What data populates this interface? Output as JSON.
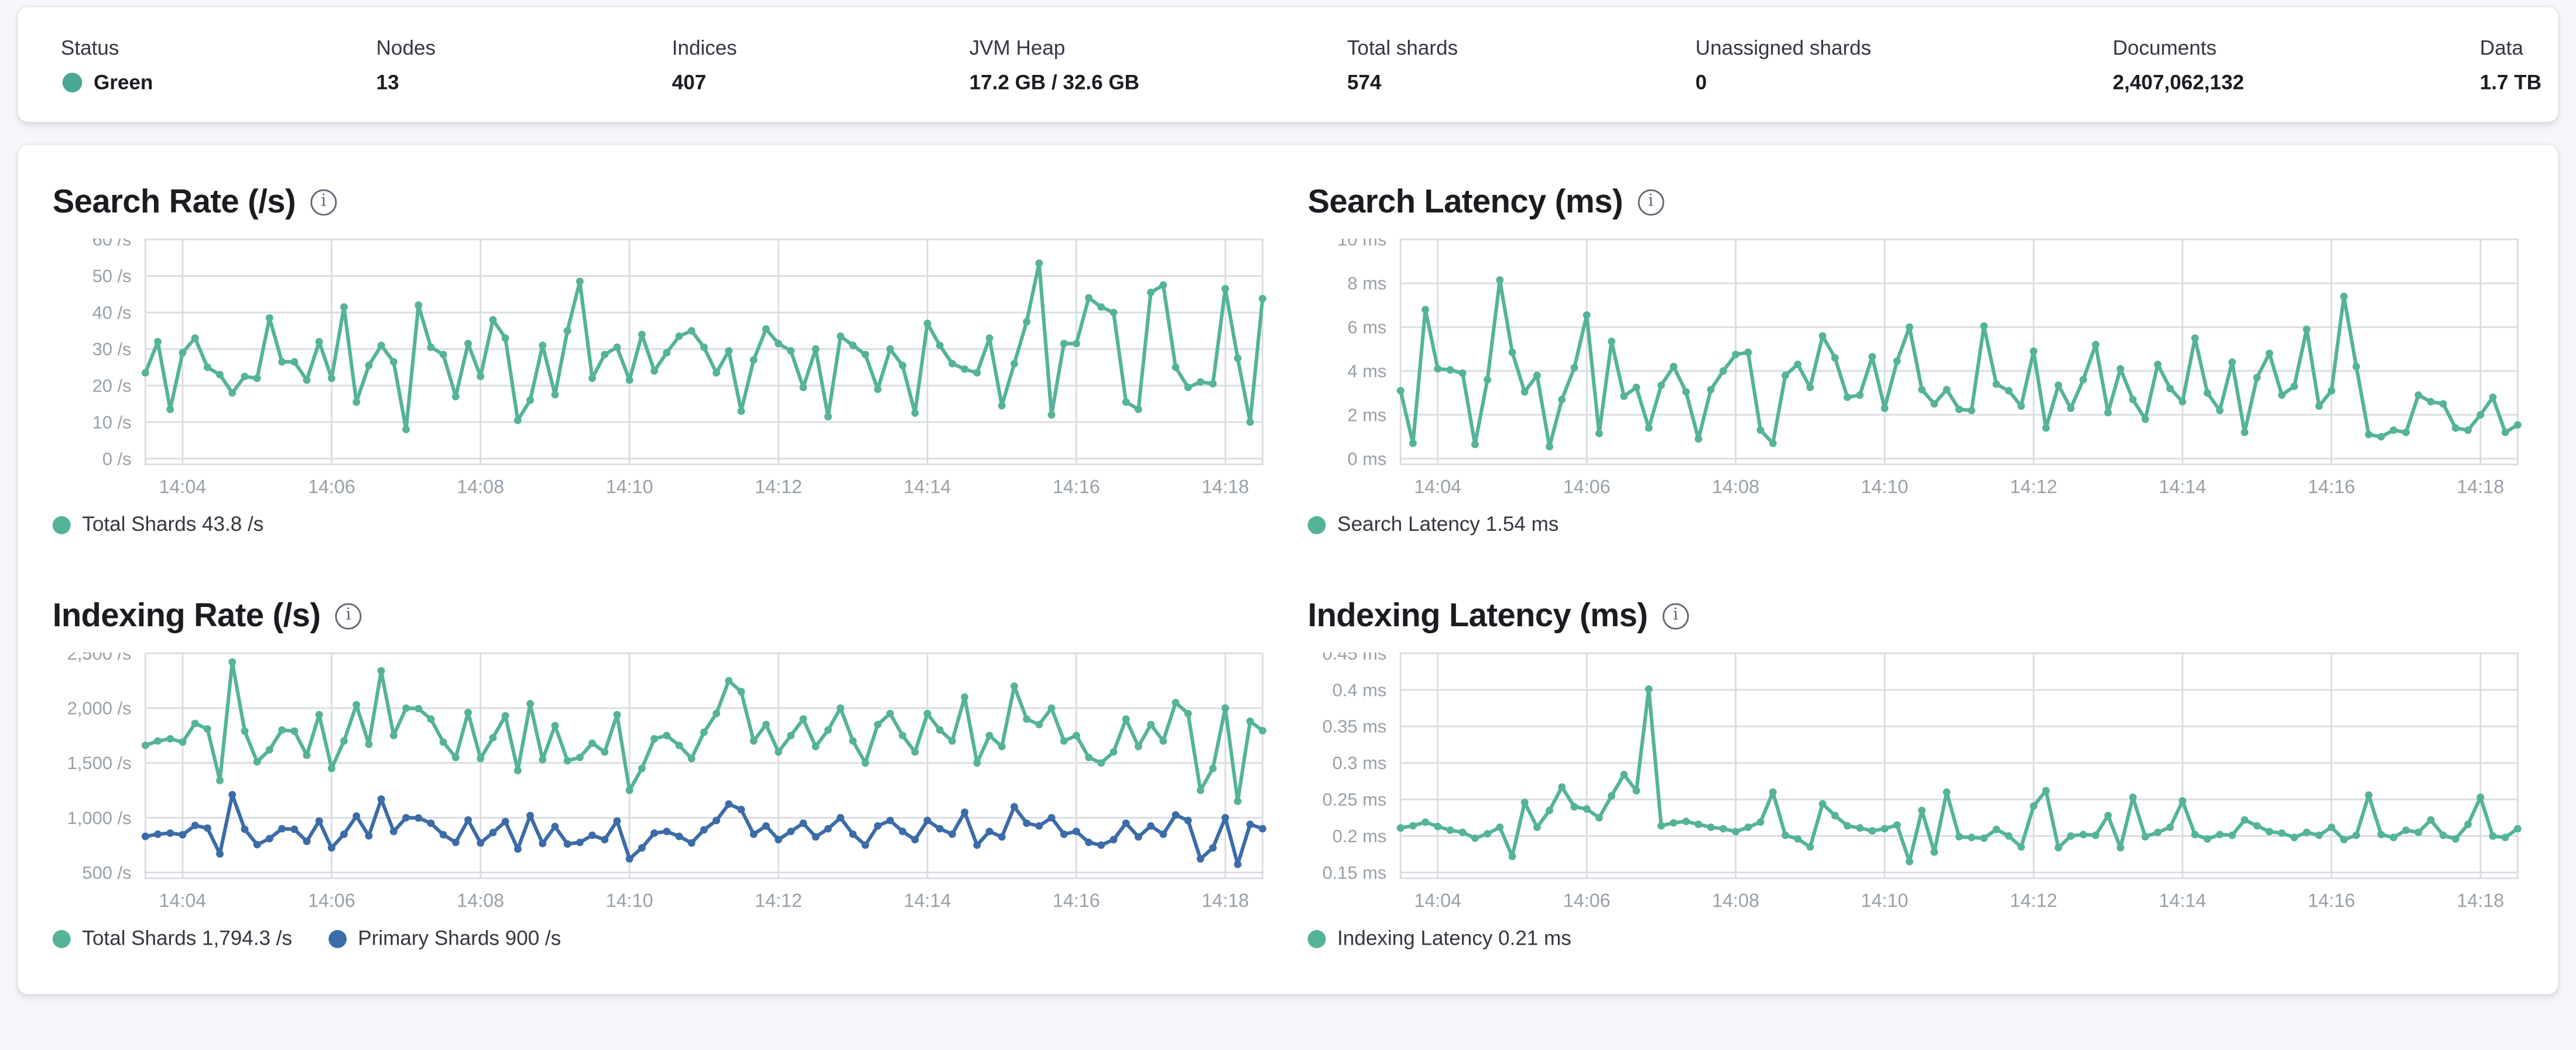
{
  "colors": {
    "teal": "#54B399",
    "blue": "#3B6CA8",
    "status_green": "#4AA794",
    "grid": "#D9DCE1",
    "axis_text": "#98A0A8"
  },
  "stats": {
    "items": [
      {
        "label": "Status",
        "value": "Green",
        "dot": true
      },
      {
        "label": "Nodes",
        "value": "13"
      },
      {
        "label": "Indices",
        "value": "407"
      },
      {
        "label": "JVM Heap",
        "value": "17.2 GB / 32.6 GB"
      },
      {
        "label": "Total shards",
        "value": "574"
      },
      {
        "label": "Unassigned shards",
        "value": "0"
      },
      {
        "label": "Documents",
        "value": "2,407,062,132"
      },
      {
        "label": "Data",
        "value": "1.7 TB"
      }
    ]
  },
  "chart_data": [
    {
      "type": "line",
      "title": "Search Rate (/s)",
      "x_start": "14:03:30",
      "x_step_seconds": 10,
      "x_ticks": [
        {
          "f": 0.0333,
          "label": "14:04"
        },
        {
          "f": 0.1667,
          "label": "14:06"
        },
        {
          "f": 0.3,
          "label": "14:08"
        },
        {
          "f": 0.4333,
          "label": "14:10"
        },
        {
          "f": 0.5667,
          "label": "14:12"
        },
        {
          "f": 0.7,
          "label": "14:14"
        },
        {
          "f": 0.8333,
          "label": "14:16"
        },
        {
          "f": 0.9667,
          "label": "14:18"
        }
      ],
      "y_ticks": [
        {
          "v": 0,
          "label": "0 /s"
        },
        {
          "v": 10,
          "label": "10 /s"
        },
        {
          "v": 20,
          "label": "20 /s"
        },
        {
          "v": 30,
          "label": "30 /s"
        },
        {
          "v": 40,
          "label": "40 /s"
        },
        {
          "v": 50,
          "label": "50 /s"
        },
        {
          "v": 60,
          "label": "60 /s"
        }
      ],
      "ylim": [
        0,
        60
      ],
      "series": [
        {
          "name": "Total Shards",
          "legend": "Total Shards 43.8 /s",
          "color": "#54B399",
          "values": [
            23.5,
            32,
            13.5,
            29,
            33,
            25,
            23,
            18,
            22.5,
            22,
            38.5,
            26.5,
            26.5,
            21.5,
            32,
            22,
            41.5,
            15.5,
            25.5,
            31,
            26.5,
            8,
            42,
            30.5,
            28.5,
            17,
            31.5,
            22.5,
            38,
            33,
            10.5,
            16,
            31,
            17.5,
            35,
            48.5,
            22,
            28.5,
            30.5,
            21.5,
            34,
            24,
            29,
            33.5,
            35,
            30.5,
            23.5,
            29.5,
            13,
            27,
            35.5,
            31.5,
            29.5,
            19.5,
            30,
            11.5,
            33.5,
            31,
            28.5,
            19,
            30,
            25.5,
            12.5,
            37,
            31,
            26,
            24.5,
            23.5,
            33,
            14.5,
            26,
            37.5,
            53.5,
            12,
            31.5,
            31.5,
            44,
            41.5,
            40,
            15.5,
            13.5,
            45.5,
            47.5,
            25,
            19.5,
            21,
            20.5,
            46.5,
            27.5,
            10,
            43.8
          ]
        }
      ]
    },
    {
      "type": "line",
      "title": "Search Latency (ms)",
      "x_start": "14:03:30",
      "x_step_seconds": 10,
      "x_ticks": [
        {
          "f": 0.0333,
          "label": "14:04"
        },
        {
          "f": 0.1667,
          "label": "14:06"
        },
        {
          "f": 0.3,
          "label": "14:08"
        },
        {
          "f": 0.4333,
          "label": "14:10"
        },
        {
          "f": 0.5667,
          "label": "14:12"
        },
        {
          "f": 0.7,
          "label": "14:14"
        },
        {
          "f": 0.8333,
          "label": "14:16"
        },
        {
          "f": 0.9667,
          "label": "14:18"
        }
      ],
      "y_ticks": [
        {
          "v": 0,
          "label": "0 ms"
        },
        {
          "v": 2,
          "label": "2 ms"
        },
        {
          "v": 4,
          "label": "4 ms"
        },
        {
          "v": 6,
          "label": "6 ms"
        },
        {
          "v": 8,
          "label": "8 ms"
        },
        {
          "v": 10,
          "label": "10 ms"
        }
      ],
      "ylim": [
        0,
        10
      ],
      "series": [
        {
          "name": "Search Latency",
          "legend": "Search Latency 1.54 ms",
          "color": "#54B399",
          "values": [
            3.1,
            0.7,
            6.8,
            4.1,
            4.05,
            3.9,
            0.65,
            3.6,
            8.15,
            4.85,
            3.05,
            3.8,
            0.55,
            2.7,
            4.15,
            6.55,
            1.15,
            5.35,
            2.85,
            3.25,
            1.4,
            3.35,
            4.2,
            3.05,
            0.9,
            3.15,
            4.0,
            4.75,
            4.85,
            1.3,
            0.7,
            3.8,
            4.3,
            3.25,
            5.6,
            4.6,
            2.8,
            2.9,
            4.65,
            2.3,
            4.45,
            6.0,
            3.15,
            2.5,
            3.15,
            2.25,
            2.2,
            6.05,
            3.4,
            3.1,
            2.4,
            4.9,
            1.4,
            3.35,
            2.3,
            3.6,
            5.2,
            2.1,
            4.1,
            2.7,
            1.8,
            4.3,
            3.2,
            2.6,
            5.5,
            3.0,
            2.2,
            4.4,
            1.2,
            3.7,
            4.8,
            2.9,
            3.3,
            5.9,
            2.4,
            3.1,
            7.4,
            4.2,
            1.1,
            1.0,
            1.3,
            1.2,
            2.9,
            2.6,
            2.5,
            1.4,
            1.3,
            2.0,
            2.8,
            1.2,
            1.54
          ]
        }
      ]
    },
    {
      "type": "line",
      "title": "Indexing Rate (/s)",
      "x_start": "14:03:30",
      "x_step_seconds": 10,
      "x_ticks": [
        {
          "f": 0.0333,
          "label": "14:04"
        },
        {
          "f": 0.1667,
          "label": "14:06"
        },
        {
          "f": 0.3,
          "label": "14:08"
        },
        {
          "f": 0.4333,
          "label": "14:10"
        },
        {
          "f": 0.5667,
          "label": "14:12"
        },
        {
          "f": 0.7,
          "label": "14:14"
        },
        {
          "f": 0.8333,
          "label": "14:16"
        },
        {
          "f": 0.9667,
          "label": "14:18"
        }
      ],
      "y_ticks": [
        {
          "v": 500,
          "label": "500 /s"
        },
        {
          "v": 1000,
          "label": "1,000 /s"
        },
        {
          "v": 1500,
          "label": "1,500 /s"
        },
        {
          "v": 2000,
          "label": "2,000 /s"
        },
        {
          "v": 2500,
          "label": "2,500 /s"
        }
      ],
      "ylim": [
        500,
        2500
      ],
      "series": [
        {
          "name": "Total Shards",
          "legend": "Total Shards 1,794.3 /s",
          "color": "#54B399",
          "values": [
            1660,
            1700,
            1720,
            1690,
            1860,
            1810,
            1340,
            2420,
            1790,
            1510,
            1620,
            1800,
            1790,
            1570,
            1940,
            1450,
            1700,
            2030,
            1670,
            2340,
            1750,
            2000,
            1995,
            1900,
            1690,
            1550,
            1960,
            1540,
            1730,
            1930,
            1430,
            2040,
            1530,
            1840,
            1520,
            1550,
            1680,
            1600,
            1940,
            1250,
            1450,
            1720,
            1750,
            1660,
            1540,
            1780,
            1950,
            2250,
            2150,
            1700,
            1850,
            1600,
            1750,
            1900,
            1650,
            1800,
            2000,
            1700,
            1500,
            1850,
            1950,
            1750,
            1600,
            1950,
            1800,
            1700,
            2100,
            1500,
            1750,
            1650,
            2200,
            1900,
            1850,
            2000,
            1700,
            1750,
            1550,
            1500,
            1600,
            1900,
            1650,
            1850,
            1700,
            2050,
            1950,
            1250,
            1450,
            2000,
            1150,
            1880,
            1794.3
          ]
        },
        {
          "name": "Primary Shards",
          "legend": "Primary Shards 900 /s",
          "color": "#3B6CA8",
          "values": [
            830,
            850,
            860,
            845,
            930,
            905,
            670,
            1210,
            895,
            755,
            810,
            900,
            895,
            785,
            970,
            725,
            850,
            1015,
            835,
            1170,
            875,
            1000,
            998,
            950,
            845,
            775,
            980,
            770,
            865,
            965,
            715,
            1020,
            765,
            920,
            760,
            775,
            840,
            800,
            970,
            625,
            725,
            860,
            875,
            830,
            770,
            890,
            975,
            1125,
            1075,
            850,
            925,
            800,
            875,
            950,
            825,
            900,
            1000,
            850,
            750,
            925,
            975,
            875,
            800,
            975,
            900,
            850,
            1050,
            750,
            875,
            825,
            1100,
            950,
            925,
            1000,
            850,
            875,
            775,
            750,
            800,
            950,
            825,
            925,
            850,
            1025,
            975,
            625,
            725,
            1000,
            575,
            940,
            900
          ]
        }
      ]
    },
    {
      "type": "line",
      "title": "Indexing Latency (ms)",
      "x_start": "14:03:30",
      "x_step_seconds": 10,
      "x_ticks": [
        {
          "f": 0.0333,
          "label": "14:04"
        },
        {
          "f": 0.1667,
          "label": "14:06"
        },
        {
          "f": 0.3,
          "label": "14:08"
        },
        {
          "f": 0.4333,
          "label": "14:10"
        },
        {
          "f": 0.5667,
          "label": "14:12"
        },
        {
          "f": 0.7,
          "label": "14:14"
        },
        {
          "f": 0.8333,
          "label": "14:16"
        },
        {
          "f": 0.9667,
          "label": "14:18"
        }
      ],
      "y_ticks": [
        {
          "v": 0.15,
          "label": "0.15 ms"
        },
        {
          "v": 0.2,
          "label": "0.2 ms"
        },
        {
          "v": 0.25,
          "label": "0.25 ms"
        },
        {
          "v": 0.3,
          "label": "0.3 ms"
        },
        {
          "v": 0.35,
          "label": "0.35 ms"
        },
        {
          "v": 0.4,
          "label": "0.4 ms"
        },
        {
          "v": 0.45,
          "label": "0.45 ms"
        }
      ],
      "ylim": [
        0.15,
        0.45
      ],
      "series": [
        {
          "name": "Indexing Latency",
          "legend": "Indexing Latency 0.21 ms",
          "color": "#54B399",
          "values": [
            0.211,
            0.214,
            0.219,
            0.213,
            0.208,
            0.205,
            0.197,
            0.203,
            0.212,
            0.172,
            0.246,
            0.212,
            0.235,
            0.267,
            0.24,
            0.237,
            0.225,
            0.255,
            0.284,
            0.262,
            0.401,
            0.214,
            0.218,
            0.22,
            0.216,
            0.212,
            0.21,
            0.206,
            0.212,
            0.219,
            0.26,
            0.201,
            0.196,
            0.185,
            0.244,
            0.228,
            0.214,
            0.211,
            0.207,
            0.21,
            0.215,
            0.165,
            0.235,
            0.178,
            0.26,
            0.199,
            0.198,
            0.197,
            0.209,
            0.2,
            0.185,
            0.241,
            0.262,
            0.184,
            0.2,
            0.202,
            0.201,
            0.228,
            0.184,
            0.253,
            0.199,
            0.205,
            0.212,
            0.248,
            0.202,
            0.196,
            0.202,
            0.201,
            0.222,
            0.214,
            0.206,
            0.204,
            0.198,
            0.205,
            0.201,
            0.212,
            0.195,
            0.201,
            0.256,
            0.202,
            0.198,
            0.208,
            0.205,
            0.222,
            0.201,
            0.196,
            0.216,
            0.253,
            0.2,
            0.198,
            0.21
          ]
        }
      ]
    }
  ]
}
